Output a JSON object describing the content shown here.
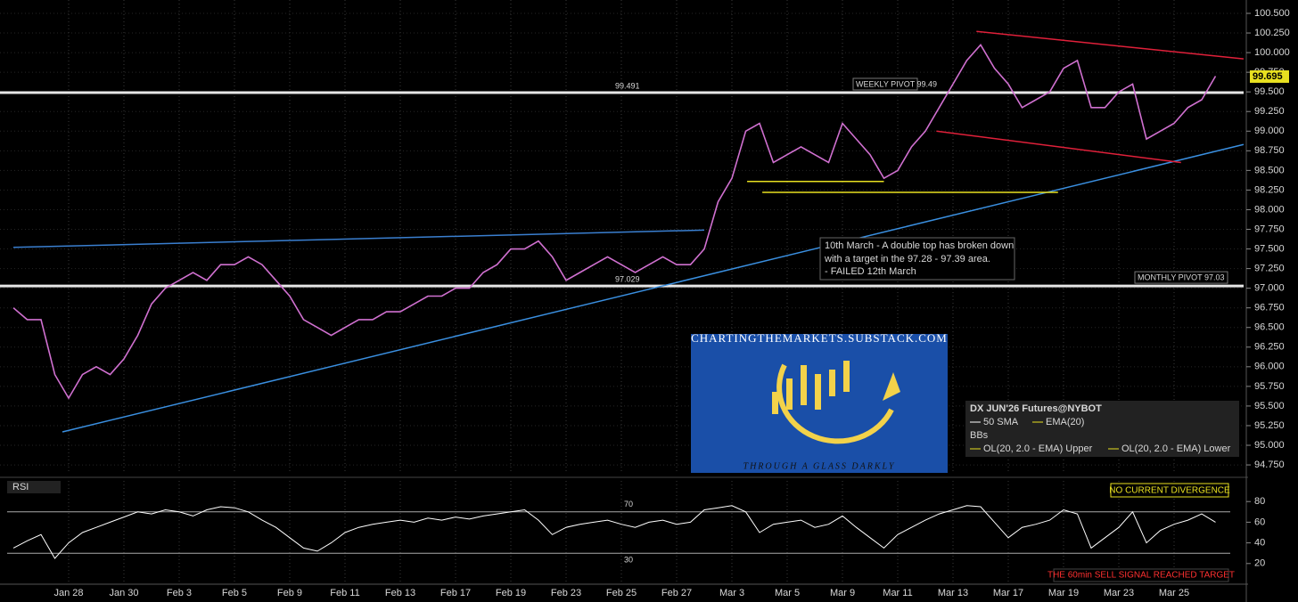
{
  "chart_data": {
    "type": "line",
    "instrument": "DX JUN'26 Futures@NYBOT",
    "legend": [
      "50 SMA",
      "EMA(20)",
      "BBs",
      "OL(20, 2.0 - EMA) Upper",
      "OL(20, 2.0 - EMA) Lower"
    ],
    "categories": [
      null,
      null,
      null,
      null,
      "Jan 28",
      null,
      null,
      null,
      "Jan 30",
      null,
      null,
      null,
      "Feb 3",
      null,
      null,
      null,
      "Feb 5",
      null,
      null,
      null,
      "Feb 9",
      null,
      null,
      null,
      "Feb 11",
      null,
      null,
      null,
      "Feb 13",
      null,
      null,
      null,
      "Feb 17",
      null,
      null,
      null,
      "Feb 19",
      null,
      null,
      null,
      "Feb 23",
      null,
      null,
      null,
      "Feb 25",
      null,
      null,
      null,
      "Feb 27",
      null,
      null,
      null,
      "Mar 3",
      null,
      null,
      null,
      "Mar 5",
      null,
      null,
      null,
      "Mar 9",
      null,
      null,
      null,
      "Mar 11",
      null,
      null,
      null,
      "Mar 13",
      null,
      null,
      null,
      "Mar 17",
      null,
      null,
      null,
      "Mar 19",
      null,
      null,
      null,
      "Mar 23",
      null,
      null,
      null,
      "Mar 25",
      null,
      null,
      null
    ],
    "series": [
      {
        "name": "DX",
        "color": "#d070d0",
        "values": [
          96.75,
          96.6,
          96.6,
          95.9,
          95.6,
          95.9,
          96.0,
          95.9,
          96.1,
          96.4,
          96.8,
          97.0,
          97.1,
          97.2,
          97.1,
          97.3,
          97.3,
          97.4,
          97.3,
          97.1,
          96.9,
          96.6,
          96.5,
          96.4,
          96.5,
          96.6,
          96.6,
          96.7,
          96.7,
          96.8,
          96.9,
          96.9,
          97.0,
          97.0,
          97.2,
          97.3,
          97.5,
          97.5,
          97.6,
          97.4,
          97.1,
          97.2,
          97.3,
          97.4,
          97.3,
          97.2,
          97.3,
          97.4,
          97.3,
          97.3,
          97.5,
          98.1,
          98.4,
          99.0,
          99.1,
          98.6,
          98.7,
          98.8,
          98.7,
          98.6,
          99.1,
          98.9,
          98.7,
          98.4,
          98.5,
          98.8,
          99.0,
          99.3,
          99.6,
          99.9,
          100.1,
          99.8,
          99.6,
          99.3,
          99.4,
          99.5,
          99.8,
          99.9,
          99.3,
          99.3,
          99.5,
          99.6,
          98.9,
          99.0,
          99.1,
          99.3,
          99.4,
          99.7
        ]
      }
    ],
    "ylim": [
      94.66,
      100.67
    ],
    "yticks": [
      {
        "value": 94.75,
        "label": "94.750"
      },
      {
        "value": 95,
        "label": "95.000"
      },
      {
        "value": 95.25,
        "label": "95.250"
      },
      {
        "value": 95.5,
        "label": "95.500"
      },
      {
        "value": 95.75,
        "label": "95.750"
      },
      {
        "value": 96,
        "label": "96.000"
      },
      {
        "value": 96.25,
        "label": "96.250"
      },
      {
        "value": 96.5,
        "label": "96.500"
      },
      {
        "value": 96.75,
        "label": "96.750"
      },
      {
        "value": 97,
        "label": "97.000"
      },
      {
        "value": 97.25,
        "label": "97.250"
      },
      {
        "value": 97.5,
        "label": "97.500"
      },
      {
        "value": 97.75,
        "label": "97.750"
      },
      {
        "value": 98,
        "label": "98.000"
      },
      {
        "value": 98.25,
        "label": "98.250"
      },
      {
        "value": 98.5,
        "label": "98.500"
      },
      {
        "value": 98.75,
        "label": "98.750"
      },
      {
        "value": 99,
        "label": "99.000"
      },
      {
        "value": 99.25,
        "label": "99.250"
      },
      {
        "value": 99.5,
        "label": "99.500"
      },
      {
        "value": 99.75,
        "label": "99.750"
      },
      {
        "value": 100,
        "label": "100.000"
      },
      {
        "value": 100.25,
        "label": "100.250"
      },
      {
        "value": 100.5,
        "label": "100.500"
      }
    ],
    "grid": true,
    "pivots": [
      {
        "value": 99.491,
        "label": "99.491",
        "tag": "WEEKLY PIVOT 99.49"
      },
      {
        "value": 97.029,
        "label": "97.029",
        "tag": "MONTHLY PIVOT 97.03"
      }
    ],
    "last_price": {
      "value": 99.695,
      "label": "99.695"
    },
    "trendlines": [
      {
        "color": "#3a8fe0",
        "x": [
          3.55,
          89.03
        ],
        "y": [
          95.17,
          98.83
        ]
      },
      {
        "color": "#3a7fd0",
        "x": [
          0,
          50
        ],
        "y": [
          97.52,
          97.74
        ]
      },
      {
        "color": "#e0203a",
        "x": [
          69.7,
          89.03
        ],
        "y": [
          100.27,
          99.92
        ]
      },
      {
        "color": "#e0203a",
        "x": [
          66.8,
          84.5
        ],
        "y": [
          99.0,
          98.6
        ]
      },
      {
        "color": "#e8e020",
        "x": [
          53.1,
          63.0
        ],
        "y": [
          98.36,
          98.36
        ]
      },
      {
        "color": "#e8e020",
        "x": [
          54.2,
          75.6
        ],
        "y": [
          98.22,
          98.22
        ]
      }
    ],
    "annotation": [
      "10th March - A double top has broken down",
      "with a target in the 97.28 - 97.39 area.",
      "- FAILED 12th March"
    ],
    "logo": [
      "CHARTINGTHEMARKETS.SUBSTACK.COM",
      "THROUGH A GLASS DARKLY"
    ],
    "rsi": {
      "label": "RSI",
      "color": "#ffffff",
      "values": [
        35,
        42,
        48,
        25,
        40,
        50,
        55,
        60,
        65,
        70,
        68,
        72,
        70,
        66,
        72,
        75,
        74,
        70,
        62,
        55,
        45,
        35,
        32,
        40,
        50,
        55,
        58,
        60,
        62,
        60,
        64,
        62,
        65,
        63,
        66,
        68,
        70,
        72,
        62,
        48,
        55,
        58,
        60,
        62,
        58,
        55,
        60,
        62,
        58,
        60,
        72,
        74,
        76,
        70,
        50,
        58,
        60,
        62,
        55,
        58,
        66,
        55,
        45,
        35,
        48,
        55,
        62,
        68,
        72,
        76,
        75,
        60,
        45,
        55,
        58,
        62,
        72,
        68,
        35,
        45,
        55,
        70,
        40,
        52,
        58,
        62,
        68,
        60
      ],
      "ylim": [
        0,
        100
      ],
      "yticks": [
        20,
        40,
        60,
        80
      ],
      "levels": [
        70,
        30
      ],
      "notes": [
        "NO CURRENT DIVERGENCE",
        "THE 60min SELL SIGNAL REACHED TARGET"
      ]
    }
  }
}
